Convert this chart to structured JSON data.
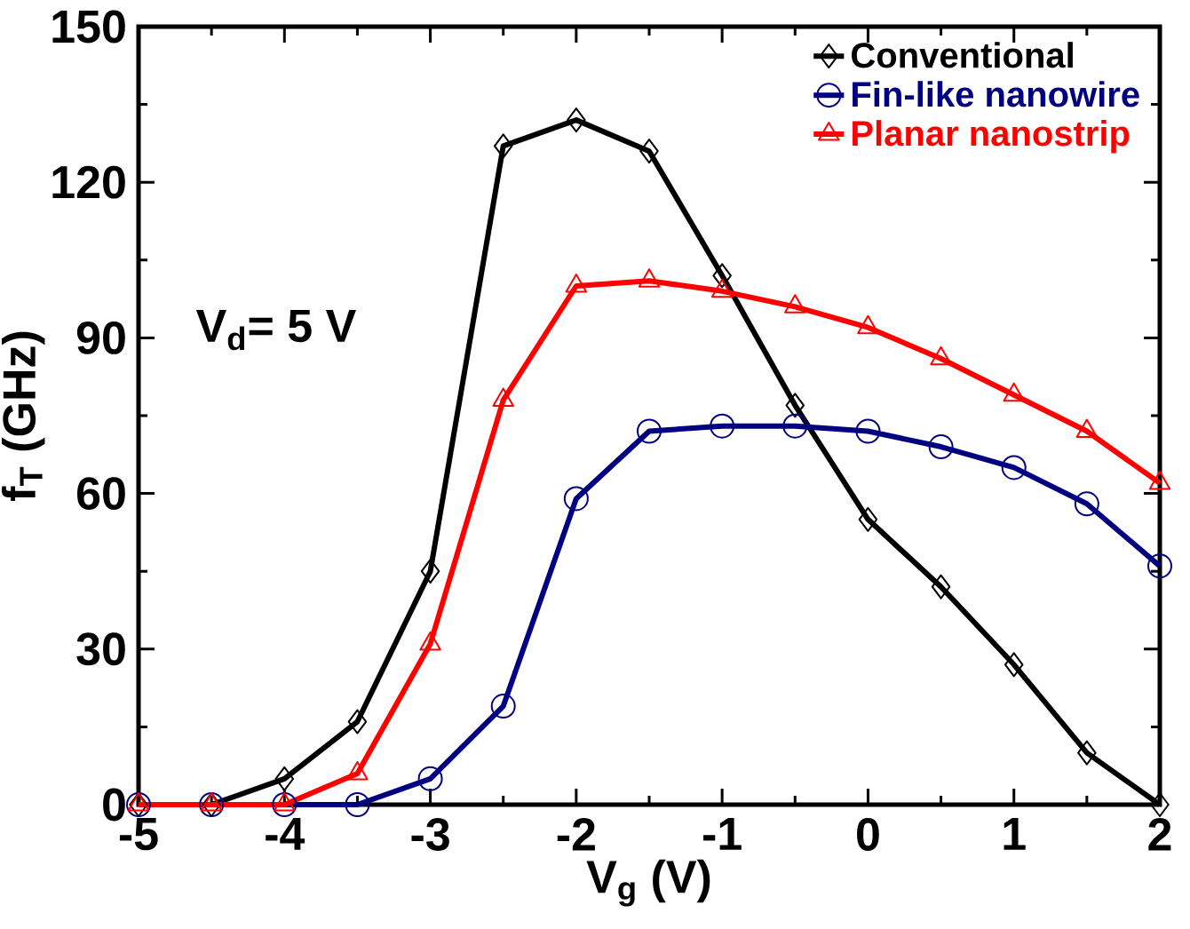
{
  "chart_data": {
    "type": "line",
    "xlabel": "V$_{g}$ (V)",
    "ylabel": "f$_{T}$ (GHz)",
    "x": [
      -5,
      -4.5,
      -4,
      -3.5,
      -3,
      -2.5,
      -2,
      -1.5,
      -1,
      -0.5,
      0,
      0.5,
      1,
      1.5,
      2
    ],
    "series": [
      {
        "name": "Conventional",
        "color": "#000000",
        "marker": "diamond",
        "values": [
          0,
          0,
          5,
          16,
          45,
          127,
          132,
          126,
          102,
          77,
          55,
          42,
          27,
          10,
          0
        ]
      },
      {
        "name": "Fin-like nanowire",
        "color": "#000080",
        "marker": "circle",
        "values": [
          0,
          0,
          0,
          0,
          5,
          19,
          59,
          72,
          73,
          73,
          72,
          69,
          65,
          58,
          46
        ]
      },
      {
        "name": "Planar nanostrip",
        "color": "#ff0000",
        "marker": "triangle",
        "values": [
          0,
          0,
          0,
          6,
          31,
          78,
          100,
          101,
          99,
          96,
          92,
          86,
          79,
          72,
          62
        ]
      }
    ],
    "xlim": [
      -5,
      2
    ],
    "xticks": [
      -5,
      -4,
      -3,
      -2,
      -1,
      0,
      1,
      2
    ],
    "ylim": [
      0,
      150
    ],
    "yticks": [
      0,
      30,
      60,
      90,
      120,
      150
    ],
    "annotations": [
      "V$_{d}$= 5 V"
    ],
    "legend": "top right",
    "grid": false,
    "line_style": "solid"
  }
}
